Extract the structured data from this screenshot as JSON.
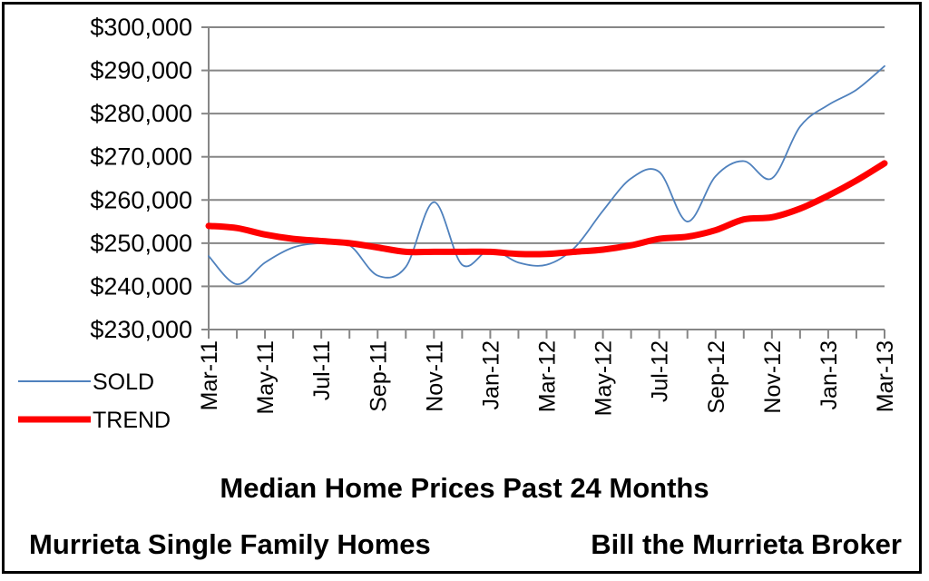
{
  "chart_data": {
    "type": "line",
    "title": "Median Home Prices Past 24  Months",
    "subtitle_left": "Murrieta Single Family Homes",
    "subtitle_right": "Bill the Murrieta Broker",
    "xlabel": "",
    "ylabel": "",
    "ylim": [
      230000,
      300000
    ],
    "y_ticks": [
      230000,
      240000,
      250000,
      260000,
      270000,
      280000,
      290000,
      300000
    ],
    "y_tick_labels": [
      "$230,000",
      "$240,000",
      "$250,000",
      "$260,000",
      "$270,000",
      "$280,000",
      "$290,000",
      "$300,000"
    ],
    "x_ticks": [
      "Mar-11",
      "May-11",
      "Jul-11",
      "Sep-11",
      "Nov-11",
      "Jan-12",
      "Mar-12",
      "May-12",
      "Jul-12",
      "Sep-12",
      "Nov-12",
      "Jan-13",
      "Mar-13"
    ],
    "x": [
      "Mar-11",
      "Apr-11",
      "May-11",
      "Jun-11",
      "Jul-11",
      "Aug-11",
      "Sep-11",
      "Oct-11",
      "Nov-11",
      "Dec-11",
      "Jan-12",
      "Feb-12",
      "Mar-12",
      "Apr-12",
      "May-12",
      "Jun-12",
      "Jul-12",
      "Aug-12",
      "Sep-12",
      "Oct-12",
      "Nov-12",
      "Dec-12",
      "Jan-13",
      "Feb-13",
      "Mar-13"
    ],
    "grid": true,
    "legend_position": "left",
    "series": [
      {
        "name": "SOLD",
        "color": "#4f81bd",
        "values": [
          247000,
          240500,
          245500,
          249000,
          250000,
          249500,
          242500,
          244500,
          259500,
          245000,
          248500,
          245500,
          245000,
          249000,
          257500,
          265000,
          266500,
          255000,
          265500,
          269000,
          265000,
          277000,
          282000,
          285500,
          291000
        ]
      },
      {
        "name": "TREND",
        "color": "#ff0000",
        "values": [
          254000,
          253500,
          252000,
          251000,
          250500,
          250000,
          249000,
          248000,
          248000,
          248000,
          248000,
          247500,
          247500,
          248000,
          248500,
          249500,
          251000,
          251500,
          253000,
          255500,
          256000,
          258000,
          261000,
          264500,
          268500
        ]
      }
    ]
  }
}
